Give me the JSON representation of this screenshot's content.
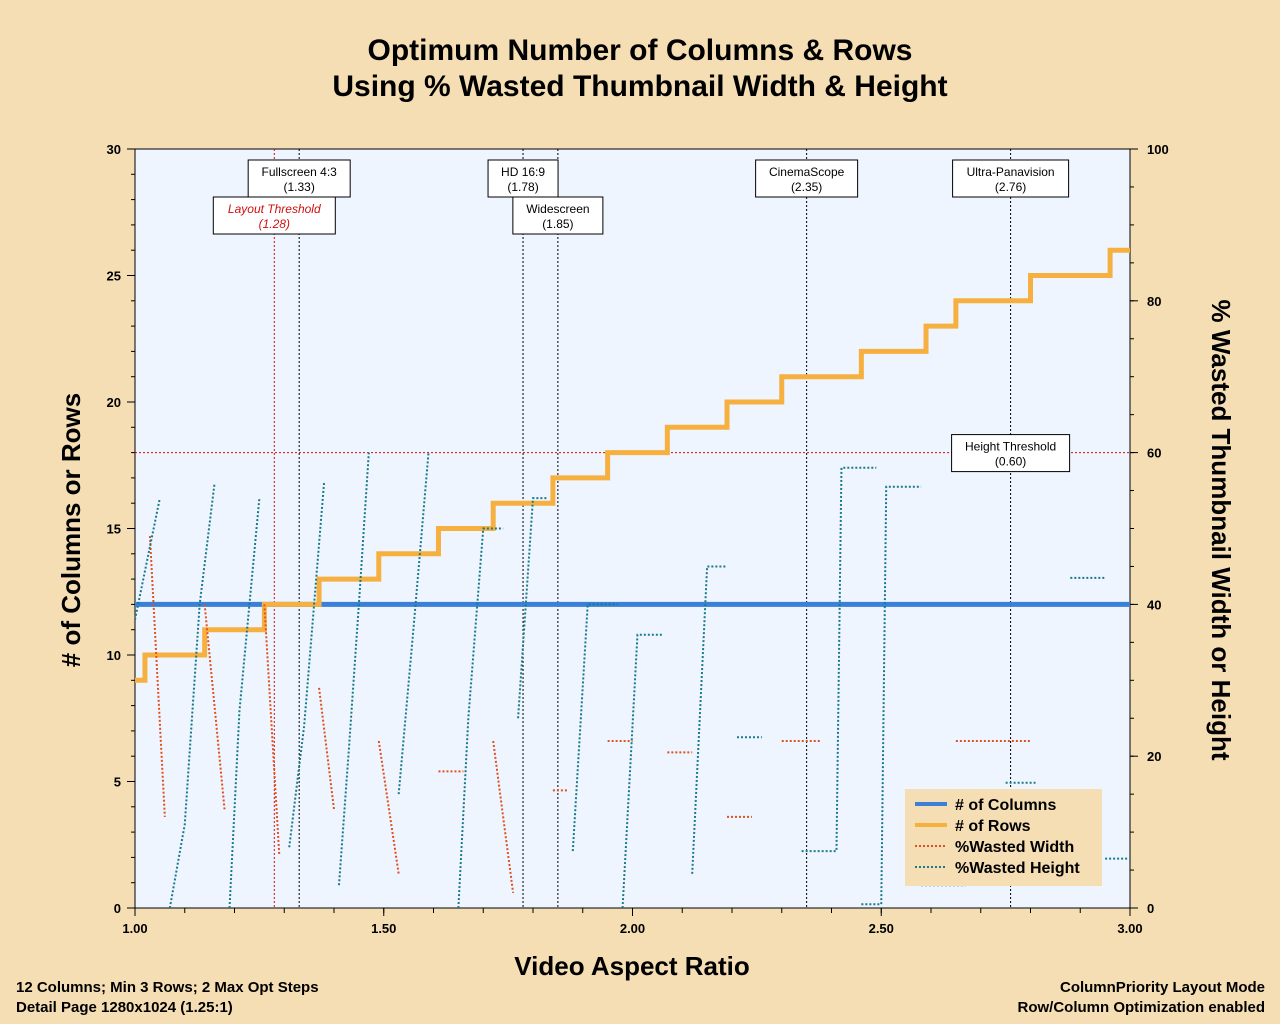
{
  "chart_data": {
    "type": "line",
    "title_lines": [
      "Optimum Number of Columns & Rows",
      "Using % Wasted Thumbnail Width & Height"
    ],
    "xlabel": "Video Aspect Ratio",
    "ylabel_left": "# of Columns or Rows",
    "ylabel_right": "% Wasted Thumbnail Width or Height",
    "xlim": [
      1.0,
      3.0
    ],
    "ylim_left": [
      0,
      30
    ],
    "ylim_right": [
      0,
      100
    ],
    "x_ticks": [
      "1.00",
      "1.50",
      "2.00",
      "2.50",
      "3.00"
    ],
    "x_tick_values": [
      1.0,
      1.5,
      2.0,
      2.5,
      3.0
    ],
    "y_left_ticks": [
      "0",
      "5",
      "10",
      "15",
      "20",
      "25",
      "30"
    ],
    "y_left_tick_values": [
      0,
      5,
      10,
      15,
      20,
      25,
      30
    ],
    "y_right_ticks": [
      "0",
      "20",
      "40",
      "60",
      "80",
      "100"
    ],
    "y_right_tick_values": [
      0,
      20,
      40,
      60,
      80,
      100
    ],
    "legend_position": "bottom-right",
    "series": [
      {
        "name": "# of Columns",
        "color": "#3a7fd8",
        "axis": "left",
        "style": "solid",
        "points": [
          [
            1.0,
            12
          ],
          [
            3.0,
            12
          ]
        ]
      },
      {
        "name": "# of Rows",
        "color": "#f5b040",
        "axis": "left",
        "style": "solid",
        "steps": [
          [
            1.0,
            9
          ],
          [
            1.02,
            10
          ],
          [
            1.14,
            11
          ],
          [
            1.26,
            12
          ],
          [
            1.37,
            13
          ],
          [
            1.49,
            14
          ],
          [
            1.61,
            15
          ],
          [
            1.72,
            16
          ],
          [
            1.84,
            17
          ],
          [
            1.95,
            18
          ],
          [
            2.07,
            19
          ],
          [
            2.19,
            20
          ],
          [
            2.3,
            21
          ],
          [
            2.46,
            22
          ],
          [
            2.59,
            23
          ],
          [
            2.65,
            24
          ],
          [
            2.8,
            25
          ],
          [
            2.96,
            26
          ],
          [
            3.0,
            26
          ]
        ]
      },
      {
        "name": "%Wasted Width",
        "color": "#e05020",
        "axis": "right",
        "style": "dotted",
        "segments": [
          [
            [
              1.03,
              49
            ],
            [
              1.06,
              12
            ]
          ],
          [
            [
              1.14,
              40
            ],
            [
              1.18,
              13
            ]
          ],
          [
            [
              1.26,
              40
            ],
            [
              1.29,
              7
            ]
          ],
          [
            [
              1.37,
              29
            ],
            [
              1.4,
              13
            ]
          ],
          [
            [
              1.49,
              22
            ],
            [
              1.53,
              4.5
            ]
          ],
          [
            [
              1.61,
              18
            ],
            [
              1.66,
              18
            ]
          ],
          [
            [
              1.72,
              22
            ],
            [
              1.76,
              2
            ]
          ],
          [
            [
              1.84,
              15.5
            ],
            [
              1.87,
              15.5
            ]
          ],
          [
            [
              1.95,
              22
            ],
            [
              2.0,
              22
            ]
          ],
          [
            [
              2.07,
              20.5
            ],
            [
              2.12,
              20.5
            ]
          ],
          [
            [
              2.19,
              12
            ],
            [
              2.24,
              12
            ]
          ],
          [
            [
              2.3,
              22
            ],
            [
              2.38,
              22
            ]
          ],
          [
            [
              2.65,
              22
            ],
            [
              2.8,
              22
            ]
          ]
        ]
      },
      {
        "name": "%Wasted Height",
        "color": "#1a7a8a",
        "axis": "right",
        "style": "dotted",
        "segments": [
          [
            [
              1.0,
              38
            ],
            [
              1.05,
              54
            ]
          ],
          [
            [
              1.07,
              0
            ],
            [
              1.1,
              11
            ],
            [
              1.13,
              40
            ],
            [
              1.16,
              56
            ]
          ],
          [
            [
              1.19,
              0
            ],
            [
              1.21,
              26
            ],
            [
              1.23,
              40
            ],
            [
              1.25,
              54
            ]
          ],
          [
            [
              1.31,
              8
            ],
            [
              1.34,
              24
            ],
            [
              1.36,
              40
            ],
            [
              1.38,
              56
            ]
          ],
          [
            [
              1.41,
              3
            ],
            [
              1.43,
              21
            ],
            [
              1.45,
              40
            ],
            [
              1.47,
              60
            ]
          ],
          [
            [
              1.53,
              15
            ],
            [
              1.56,
              37
            ],
            [
              1.59,
              60
            ]
          ],
          [
            [
              1.65,
              0
            ],
            [
              1.67,
              25
            ],
            [
              1.7,
              50
            ],
            [
              1.74,
              50
            ]
          ],
          [
            [
              1.77,
              25
            ],
            [
              1.8,
              54
            ],
            [
              1.83,
              54
            ]
          ],
          [
            [
              1.88,
              7.5
            ],
            [
              1.91,
              40
            ],
            [
              1.97,
              40
            ]
          ],
          [
            [
              1.98,
              0
            ],
            [
              2.01,
              36
            ],
            [
              2.06,
              36
            ]
          ],
          [
            [
              2.12,
              4.5
            ],
            [
              2.15,
              45
            ],
            [
              2.19,
              45
            ]
          ],
          [
            [
              2.21,
              22.5
            ],
            [
              2.26,
              22.5
            ]
          ],
          [
            [
              2.34,
              7.5
            ],
            [
              2.41,
              7.5
            ],
            [
              2.42,
              58
            ],
            [
              2.49,
              58
            ]
          ],
          [
            [
              2.46,
              0.5
            ],
            [
              2.5,
              0.5
            ],
            [
              2.51,
              55.5
            ],
            [
              2.58,
              55.5
            ]
          ],
          [
            [
              2.58,
              3
            ],
            [
              2.67,
              3
            ]
          ],
          [
            [
              2.75,
              16.5
            ],
            [
              2.81,
              16.5
            ]
          ],
          [
            [
              2.88,
              43.5
            ],
            [
              2.95,
              43.5
            ]
          ],
          [
            [
              2.95,
              6.5
            ],
            [
              3.0,
              6.5
            ]
          ]
        ]
      }
    ],
    "vertical_markers": [
      {
        "x": 1.28,
        "label": "Layout Threshold",
        "value": "(1.28)",
        "color": "#d01010",
        "row": 2
      },
      {
        "x": 1.33,
        "label": "Fullscreen 4:3",
        "value": "(1.33)",
        "color": "#000000",
        "row": 1
      },
      {
        "x": 1.78,
        "label": "HD 16:9",
        "value": "(1.78)",
        "color": "#000000",
        "row": 1
      },
      {
        "x": 1.85,
        "label": "Widescreen",
        "value": "(1.85)",
        "color": "#000000",
        "row": 2
      },
      {
        "x": 2.35,
        "label": "CinemaScope",
        "value": "(2.35)",
        "color": "#000000",
        "row": 1
      },
      {
        "x": 2.76,
        "label": "Ultra-Panavision",
        "value": "(2.76)",
        "color": "#000000",
        "row": 1
      }
    ],
    "horizontal_markers": [
      {
        "y_right": 60,
        "label": "Height Threshold",
        "value": "(0.60)",
        "color": "#d01010",
        "label_x": 2.76
      }
    ]
  },
  "footer": {
    "left_line1": "12 Columns; Min 3 Rows; 2 Max Opt Steps",
    "left_line2": "Detail Page  1280x1024 (1.25:1)",
    "right_line1": "ColumnPriority Layout Mode",
    "right_line2": "Row/Column Optimization enabled"
  }
}
